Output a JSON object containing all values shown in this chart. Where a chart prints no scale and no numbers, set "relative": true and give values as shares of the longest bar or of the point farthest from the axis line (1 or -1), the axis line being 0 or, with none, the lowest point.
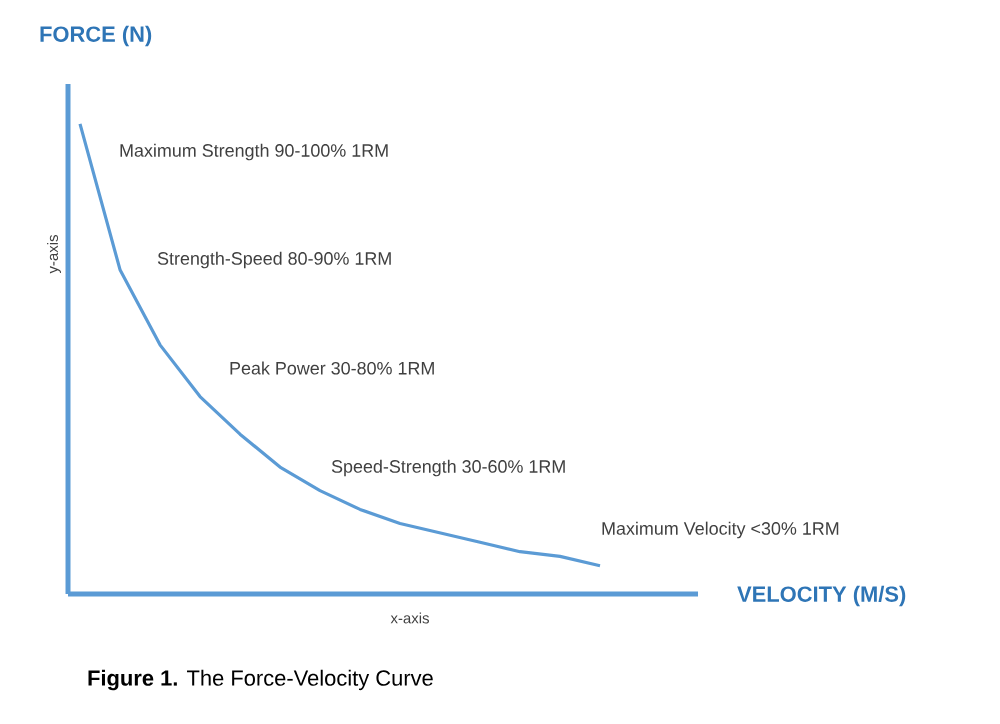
{
  "chart_data": {
    "type": "line",
    "title": "**Figure 1.** The Force-Velocity Curve",
    "xlabel": "x-axis",
    "ylabel": "y-axis",
    "annotations": [
      "FORCE (N)",
      "VELOCITY (M/S)",
      "Maximum Strength 90-100% 1RM",
      "Strength-Speed 80-90% 1RM",
      "Peak Power 30-80% 1RM",
      "Speed-Strength 30-60% 1RM",
      "Maximum Velocity <30% 1RM"
    ],
    "categories": [
      null,
      null,
      null,
      null,
      null,
      null,
      null,
      null,
      null,
      null,
      null,
      null,
      null,
      null
    ],
    "values": [
      1.0,
      0.69,
      0.53,
      0.42,
      0.34,
      0.27,
      0.22,
      0.18,
      0.15,
      0.13,
      0.11,
      0.09,
      0.08,
      0.06
    ],
    "color": "#5b9bd5",
    "relative": true
  }
}
